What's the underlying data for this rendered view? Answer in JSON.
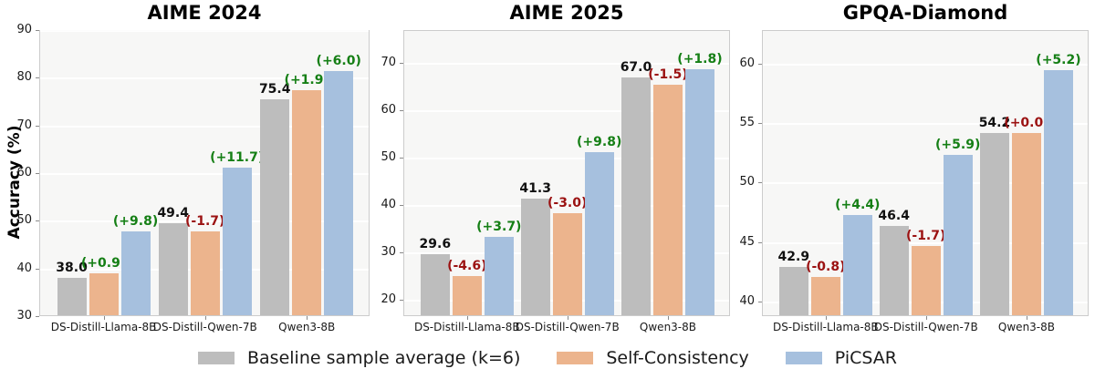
{
  "figure": {
    "ylabel": "Accuracy (%)",
    "background": "#ffffff",
    "colors": {
      "baseline": "#bdbdbd",
      "self_consistency": "#ecb48d",
      "picsar": "#a6c0de",
      "positive": "#157f15",
      "negative": "#9b1212",
      "value": "#111111",
      "plot_bg": "#f7f7f6",
      "grid": "#ffffff",
      "border": "#cccccc"
    },
    "legend": [
      {
        "label": "Baseline sample average (k=6)",
        "color_key": "baseline"
      },
      {
        "label": "Self-Consistency",
        "color_key": "self_consistency"
      },
      {
        "label": "PiCSAR",
        "color_key": "picsar"
      }
    ]
  },
  "chart_data": [
    {
      "type": "bar",
      "title": "AIME 2024",
      "ylabel": "Accuracy (%)",
      "categories": [
        "DS-Distill-Llama-8B",
        "DS-Distill-Qwen-7B",
        "Qwen3-8B"
      ],
      "ylim": [
        30,
        90
      ],
      "yticks": [
        30,
        40,
        50,
        60,
        70,
        80,
        90
      ],
      "grid": true,
      "legend_position": "bottom",
      "series": [
        {
          "name": "Baseline sample average (k=6)",
          "color_key": "baseline",
          "values": [
            38.0,
            49.4,
            75.4
          ],
          "bar_labels": [
            "38.0",
            "49.4",
            "75.4"
          ],
          "label_colors": [
            "value",
            "value",
            "value"
          ]
        },
        {
          "name": "Self-Consistency",
          "color_key": "self_consistency",
          "values": [
            38.9,
            47.7,
            77.3
          ],
          "bar_labels": [
            "(+0.9)",
            "(-1.7)",
            "(+1.9)"
          ],
          "label_colors": [
            "positive",
            "negative",
            "positive"
          ]
        },
        {
          "name": "PiCSAR",
          "color_key": "picsar",
          "values": [
            47.8,
            61.1,
            81.4
          ],
          "bar_labels": [
            "(+9.8)",
            "(+11.7)",
            "(+6.0)"
          ],
          "label_colors": [
            "positive",
            "positive",
            "positive"
          ]
        }
      ]
    },
    {
      "type": "bar",
      "title": "AIME 2025",
      "categories": [
        "DS-Distill-Llama-8B",
        "DS-Distill-Qwen-7B",
        "Qwen3-8B"
      ],
      "ylim": [
        16.5,
        77
      ],
      "yticks": [
        20,
        30,
        40,
        50,
        60,
        70
      ],
      "grid": true,
      "legend_position": "bottom",
      "series": [
        {
          "name": "Baseline sample average (k=6)",
          "color_key": "baseline",
          "values": [
            29.6,
            41.3,
            67.0
          ],
          "bar_labels": [
            "29.6",
            "41.3",
            "67.0"
          ],
          "label_colors": [
            "value",
            "value",
            "value"
          ]
        },
        {
          "name": "Self-Consistency",
          "color_key": "self_consistency",
          "values": [
            25.0,
            38.3,
            65.5
          ],
          "bar_labels": [
            "(-4.6)",
            "(-3.0)",
            "(-1.5)"
          ],
          "label_colors": [
            "negative",
            "negative",
            "negative"
          ]
        },
        {
          "name": "PiCSAR",
          "color_key": "picsar",
          "values": [
            33.3,
            51.1,
            68.8
          ],
          "bar_labels": [
            "(+3.7)",
            "(+9.8)",
            "(+1.8)"
          ],
          "label_colors": [
            "positive",
            "positive",
            "positive"
          ]
        }
      ]
    },
    {
      "type": "bar",
      "title": "GPQA-Diamond",
      "categories": [
        "DS-Distill-Llama-8B",
        "DS-Distill-Qwen-7B",
        "Qwen3-8B"
      ],
      "ylim": [
        38.8,
        62.8
      ],
      "yticks": [
        40,
        45,
        50,
        55,
        60
      ],
      "grid": true,
      "legend_position": "bottom",
      "series": [
        {
          "name": "Baseline sample average (k=6)",
          "color_key": "baseline",
          "values": [
            42.9,
            46.4,
            54.2
          ],
          "bar_labels": [
            "42.9",
            "46.4",
            "54.2"
          ],
          "label_colors": [
            "value",
            "value",
            "value"
          ]
        },
        {
          "name": "Self-Consistency",
          "color_key": "self_consistency",
          "values": [
            42.1,
            44.7,
            54.2
          ],
          "bar_labels": [
            "(-0.8)",
            "(-1.7)",
            "(+0.0)"
          ],
          "label_colors": [
            "negative",
            "negative",
            "negative"
          ]
        },
        {
          "name": "PiCSAR",
          "color_key": "picsar",
          "values": [
            47.3,
            52.3,
            59.4
          ],
          "bar_labels": [
            "(+4.4)",
            "(+5.9)",
            "(+5.2)"
          ],
          "label_colors": [
            "positive",
            "positive",
            "positive"
          ]
        }
      ]
    }
  ]
}
